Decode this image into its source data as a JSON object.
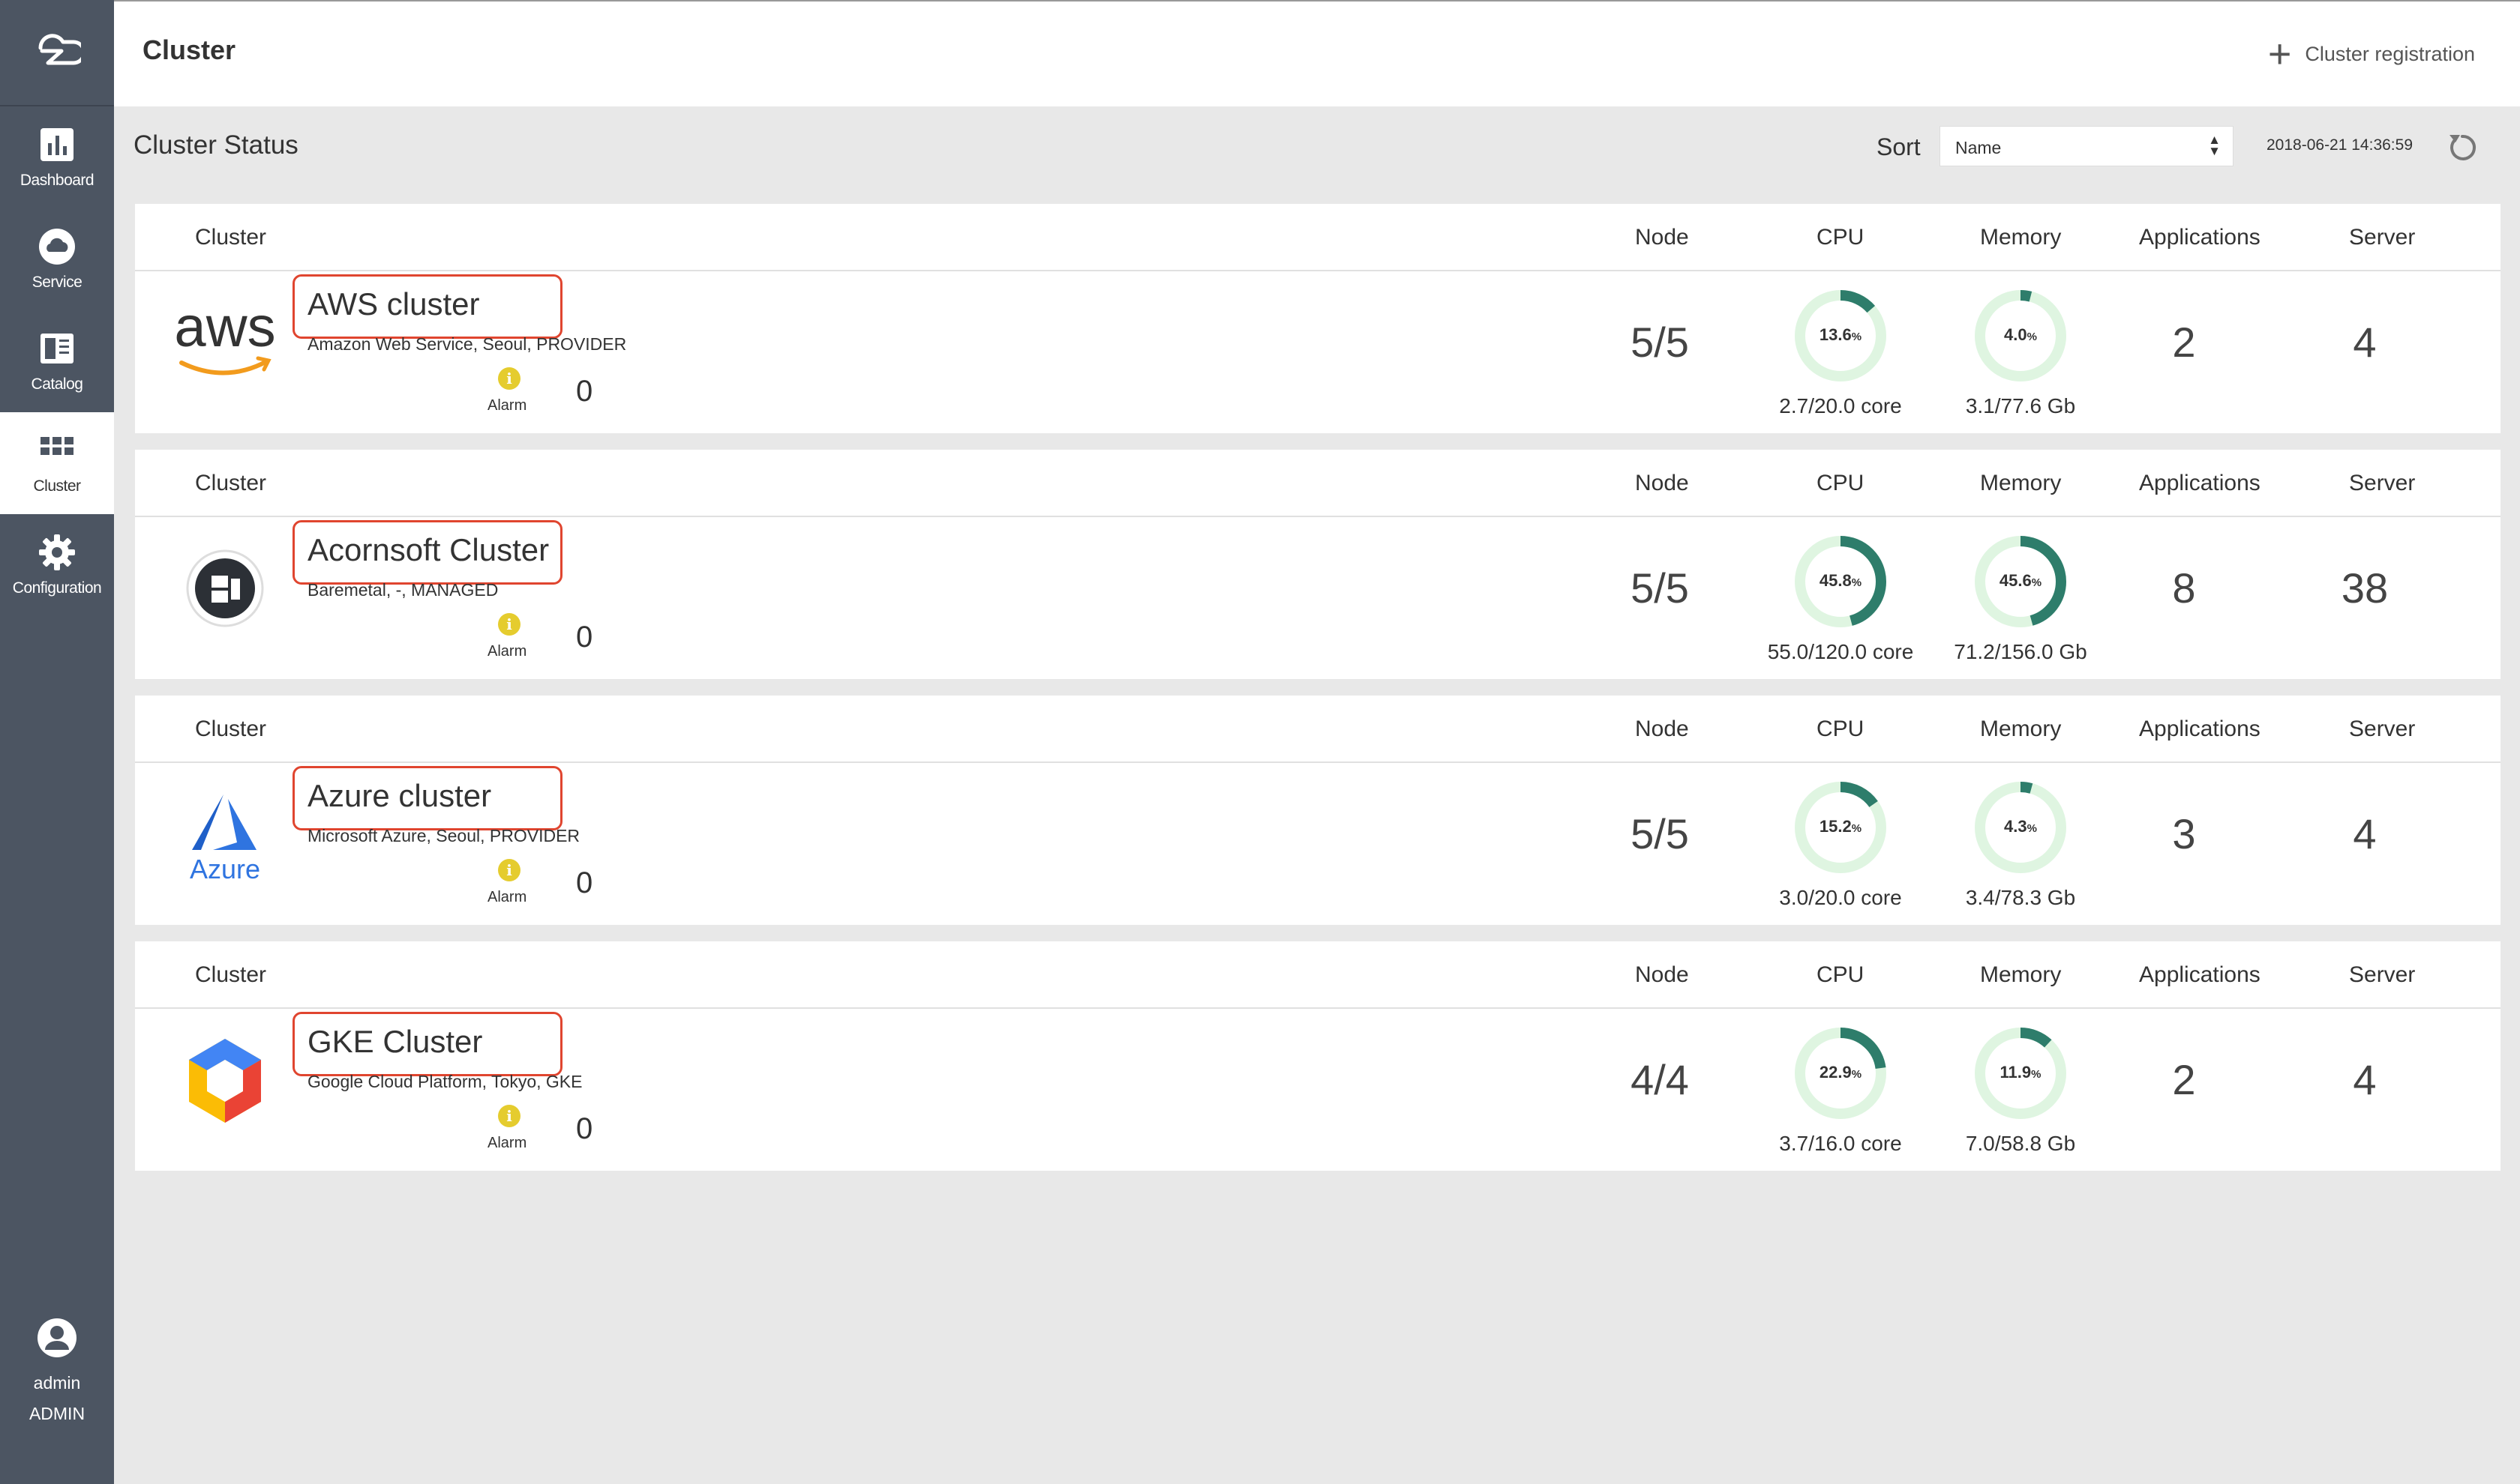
{
  "sidebar": {
    "items": [
      {
        "label": "Dashboard",
        "icon": "dashboard-icon",
        "active": false
      },
      {
        "label": "Service",
        "icon": "cloud-icon",
        "active": false
      },
      {
        "label": "Catalog",
        "icon": "catalog-icon",
        "active": false
      },
      {
        "label": "Cluster",
        "icon": "grid-icon",
        "active": true
      },
      {
        "label": "Configuration",
        "icon": "gear-icon",
        "active": false
      }
    ],
    "user": {
      "name": "admin",
      "role": "ADMIN"
    }
  },
  "topbar": {
    "title": "Cluster",
    "register_label": "Cluster registration"
  },
  "status": {
    "title": "Cluster Status",
    "sort_label": "Sort",
    "sort_value": "Name",
    "timestamp": "2018-06-21 14:36:59"
  },
  "columns": {
    "cluster": "Cluster",
    "node": "Node",
    "cpu": "CPU",
    "memory": "Memory",
    "applications": "Applications",
    "server": "Server"
  },
  "alarm_label": "Alarm",
  "colors": {
    "sidebar": "#4c5562",
    "donut_fill": "#2e7d6b",
    "donut_track": "#dff5e1",
    "highlight": "#e0452f",
    "alarm": "#e5cc2e"
  },
  "clusters": [
    {
      "name": "AWS cluster",
      "desc": "Amazon Web Service, Seoul, PROVIDER",
      "logo": "aws-logo",
      "alarm": "0",
      "node": "5/5",
      "cpu_pct": 13.6,
      "cpu_label": "13.6",
      "cpu_sub": "2.7/20.0 core",
      "mem_pct": 4.0,
      "mem_label": "4.0",
      "mem_sub": "3.1/77.6 Gb",
      "applications": "2",
      "server": "4"
    },
    {
      "name": "Acornsoft Cluster",
      "desc": "Baremetal, -, MANAGED",
      "logo": "baremetal-logo",
      "alarm": "0",
      "node": "5/5",
      "cpu_pct": 45.8,
      "cpu_label": "45.8",
      "cpu_sub": "55.0/120.0 core",
      "mem_pct": 45.6,
      "mem_label": "45.6",
      "mem_sub": "71.2/156.0 Gb",
      "applications": "8",
      "server": "38"
    },
    {
      "name": "Azure cluster",
      "desc": "Microsoft Azure, Seoul, PROVIDER",
      "logo": "azure-logo",
      "alarm": "0",
      "node": "5/5",
      "cpu_pct": 15.2,
      "cpu_label": "15.2",
      "cpu_sub": "3.0/20.0 core",
      "mem_pct": 4.3,
      "mem_label": "4.3",
      "mem_sub": "3.4/78.3 Gb",
      "applications": "3",
      "server": "4"
    },
    {
      "name": "GKE Cluster",
      "desc": "Google Cloud Platform, Tokyo, GKE",
      "logo": "gcp-logo",
      "alarm": "0",
      "node": "4/4",
      "cpu_pct": 22.9,
      "cpu_label": "22.9",
      "cpu_sub": "3.7/16.0 core",
      "mem_pct": 11.9,
      "mem_label": "11.9",
      "mem_sub": "7.0/58.8 Gb",
      "applications": "2",
      "server": "4"
    }
  ]
}
